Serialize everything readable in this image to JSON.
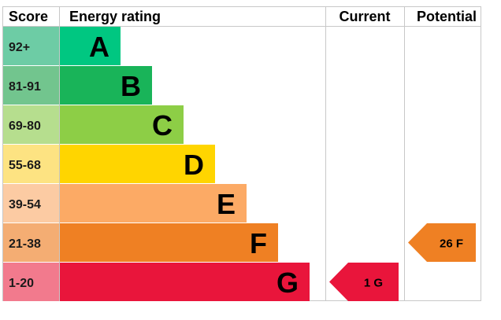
{
  "chart_data": {
    "type": "energy-rating",
    "headers": {
      "score": "Score",
      "rating": "Energy rating",
      "current": "Current",
      "potential": "Potential"
    },
    "bands": [
      {
        "score": "92+",
        "letter": "A",
        "color": "#00c781",
        "score_bg": "#6dcca5"
      },
      {
        "score": "81-91",
        "letter": "B",
        "color": "#19b459",
        "score_bg": "#72c58e"
      },
      {
        "score": "69-80",
        "letter": "C",
        "color": "#8dce46",
        "score_bg": "#b6de8e"
      },
      {
        "score": "55-68",
        "letter": "D",
        "color": "#ffd500",
        "score_bg": "#fde382"
      },
      {
        "score": "39-54",
        "letter": "E",
        "color": "#fcaa65",
        "score_bg": "#fccba3"
      },
      {
        "score": "21-38",
        "letter": "F",
        "color": "#ef8023",
        "score_bg": "#f4ad73"
      },
      {
        "score": "1-20",
        "letter": "G",
        "color": "#e9153b",
        "score_bg": "#f27a8d"
      }
    ],
    "current": {
      "value": 1,
      "letter": "G",
      "label": "1 G",
      "color": "#e9153b"
    },
    "potential": {
      "value": 26,
      "letter": "F",
      "label": "26 F",
      "color": "#ef8023"
    }
  }
}
